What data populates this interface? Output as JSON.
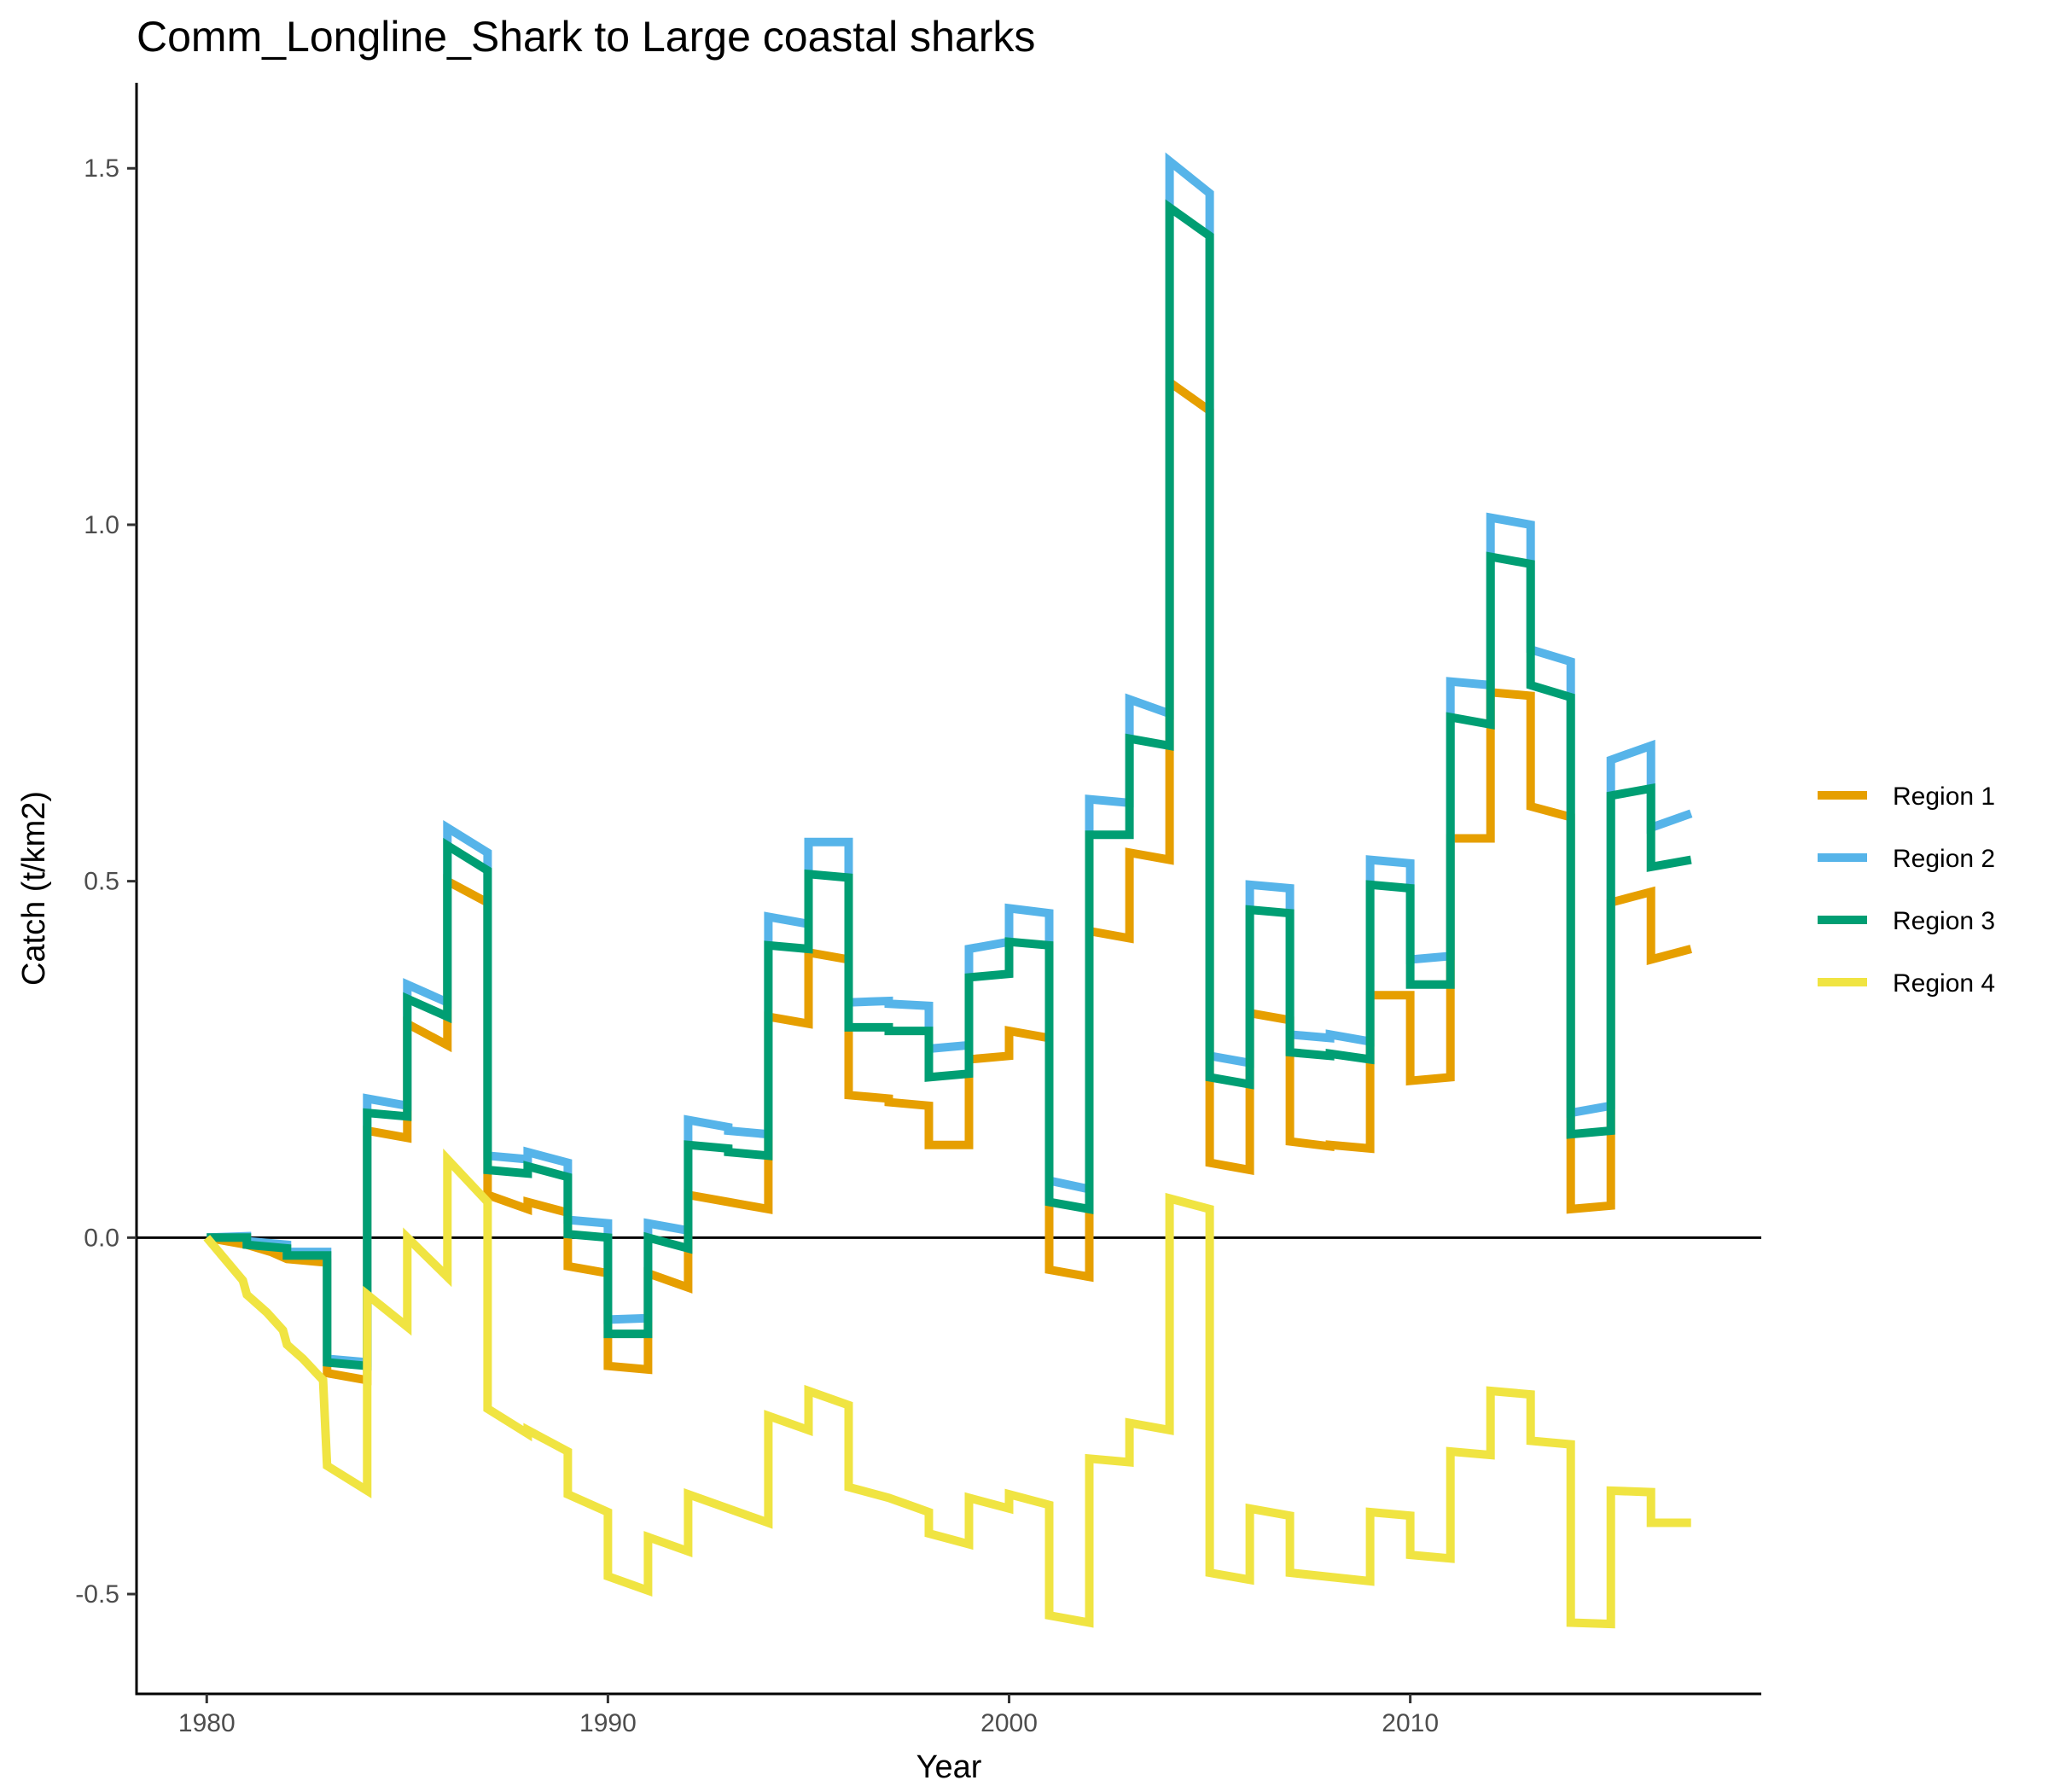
{
  "chart_data": {
    "type": "line",
    "title": "Comm_Longline_Shark to Large coastal sharks",
    "xlabel": "Year",
    "ylabel": "Catch (t/km2)",
    "xlim": [
      1978.25,
      2018.75
    ],
    "ylim": [
      -0.64,
      1.62
    ],
    "x_ticks": [
      1980,
      1990,
      2000,
      2010
    ],
    "y_ticks": [
      -0.5,
      0.0,
      0.5,
      1.0,
      1.5
    ],
    "x_tick_labels": [
      "1980",
      "1990",
      "2000",
      "2010"
    ],
    "y_tick_labels": [
      "-0.5",
      "0.0",
      "0.5",
      "1.0",
      "1.5"
    ],
    "reference_line_y": 0,
    "grid": false,
    "legend_position": "right",
    "series": [
      {
        "name": "Region 1",
        "color": "#E69F00",
        "points": [
          [
            1980,
            0
          ],
          [
            1981,
            -0.01
          ],
          [
            1981.6,
            -0.02
          ],
          [
            1982,
            -0.03
          ],
          [
            1983,
            -0.035
          ],
          [
            1983,
            -0.19
          ],
          [
            1984,
            -0.2
          ],
          [
            1984,
            0.15
          ],
          [
            1985,
            0.14
          ],
          [
            1985,
            0.3
          ],
          [
            1986,
            0.27
          ],
          [
            1986,
            0.5
          ],
          [
            1987,
            0.47
          ],
          [
            1987,
            0.06
          ],
          [
            1988,
            0.04
          ],
          [
            1988,
            0.05
          ],
          [
            1989,
            0.035
          ],
          [
            1989,
            -0.04
          ],
          [
            1990,
            -0.05
          ],
          [
            1990,
            -0.18
          ],
          [
            1991,
            -0.185
          ],
          [
            1991,
            -0.05
          ],
          [
            1992,
            -0.07
          ],
          [
            1992,
            0.06
          ],
          [
            1993,
            0.05
          ],
          [
            1993.5,
            0.045
          ],
          [
            1994,
            0.04
          ],
          [
            1994,
            0.31
          ],
          [
            1995,
            0.3
          ],
          [
            1995,
            0.4
          ],
          [
            1996,
            0.39
          ],
          [
            1996,
            0.2
          ],
          [
            1997,
            0.195
          ],
          [
            1997,
            0.19
          ],
          [
            1998,
            0.185
          ],
          [
            1998,
            0.13
          ],
          [
            1999,
            0.13
          ],
          [
            1999,
            0.25
          ],
          [
            2000,
            0.255
          ],
          [
            2000,
            0.29
          ],
          [
            2001,
            0.28
          ],
          [
            2001,
            -0.045
          ],
          [
            2002,
            -0.055
          ],
          [
            2002,
            0.43
          ],
          [
            2003,
            0.42
          ],
          [
            2003,
            0.54
          ],
          [
            2004,
            0.53
          ],
          [
            2004,
            1.2
          ],
          [
            2005,
            1.16
          ],
          [
            2005,
            0.105
          ],
          [
            2006,
            0.095
          ],
          [
            2006,
            0.315
          ],
          [
            2007,
            0.305
          ],
          [
            2007,
            0.135
          ],
          [
            2008,
            0.128
          ],
          [
            2008,
            0.13
          ],
          [
            2009,
            0.125
          ],
          [
            2009,
            0.34
          ],
          [
            2010,
            0.34
          ],
          [
            2010,
            0.22
          ],
          [
            2011,
            0.225
          ],
          [
            2011,
            0.56
          ],
          [
            2012,
            0.56
          ],
          [
            2012,
            0.765
          ],
          [
            2013,
            0.76
          ],
          [
            2013,
            0.605
          ],
          [
            2014,
            0.59
          ],
          [
            2014,
            0.04
          ],
          [
            2015,
            0.045
          ],
          [
            2015,
            0.47
          ],
          [
            2016,
            0.485
          ],
          [
            2016,
            0.39
          ],
          [
            2017,
            0.405
          ]
        ]
      },
      {
        "name": "Region 2",
        "color": "#56B4E9",
        "points": [
          [
            1980,
            0
          ],
          [
            1981,
            0.002
          ],
          [
            1981,
            -0.005
          ],
          [
            1982,
            -0.01
          ],
          [
            1982,
            -0.02
          ],
          [
            1983,
            -0.02
          ],
          [
            1983,
            -0.17
          ],
          [
            1984,
            -0.175
          ],
          [
            1984,
            0.195
          ],
          [
            1985,
            0.185
          ],
          [
            1985,
            0.355
          ],
          [
            1986,
            0.33
          ],
          [
            1986,
            0.575
          ],
          [
            1987,
            0.54
          ],
          [
            1987,
            0.115
          ],
          [
            1988,
            0.11
          ],
          [
            1988,
            0.12
          ],
          [
            1989,
            0.105
          ],
          [
            1989,
            0.025
          ],
          [
            1990,
            0.02
          ],
          [
            1990,
            -0.115
          ],
          [
            1991,
            -0.113
          ],
          [
            1991,
            0.02
          ],
          [
            1992,
            0.01
          ],
          [
            1992,
            0.165
          ],
          [
            1993,
            0.155
          ],
          [
            1993,
            0.15
          ],
          [
            1994,
            0.145
          ],
          [
            1994,
            0.45
          ],
          [
            1995,
            0.44
          ],
          [
            1995,
            0.555
          ],
          [
            1996,
            0.555
          ],
          [
            1996,
            0.33
          ],
          [
            1997,
            0.332
          ],
          [
            1997,
            0.328
          ],
          [
            1998,
            0.325
          ],
          [
            1998,
            0.265
          ],
          [
            1999,
            0.27
          ],
          [
            1999,
            0.405
          ],
          [
            2000,
            0.415
          ],
          [
            2000,
            0.462
          ],
          [
            2001,
            0.455
          ],
          [
            2001,
            0.08
          ],
          [
            2002,
            0.068
          ],
          [
            2002,
            0.615
          ],
          [
            2003,
            0.61
          ],
          [
            2003,
            0.755
          ],
          [
            2004,
            0.735
          ],
          [
            2004,
            1.51
          ],
          [
            2005,
            1.465
          ],
          [
            2005,
            0.255
          ],
          [
            2006,
            0.245
          ],
          [
            2006,
            0.495
          ],
          [
            2007,
            0.49
          ],
          [
            2007,
            0.285
          ],
          [
            2008,
            0.28
          ],
          [
            2008,
            0.285
          ],
          [
            2009,
            0.275
          ],
          [
            2009,
            0.53
          ],
          [
            2010,
            0.525
          ],
          [
            2010,
            0.39
          ],
          [
            2011,
            0.395
          ],
          [
            2011,
            0.78
          ],
          [
            2012,
            0.775
          ],
          [
            2012,
            1.01
          ],
          [
            2013,
            1.0
          ],
          [
            2013,
            0.825
          ],
          [
            2014,
            0.808
          ],
          [
            2014,
            0.175
          ],
          [
            2015,
            0.185
          ],
          [
            2015,
            0.67
          ],
          [
            2016,
            0.69
          ],
          [
            2016,
            0.575
          ],
          [
            2017,
            0.595
          ]
        ]
      },
      {
        "name": "Region 3",
        "color": "#009E73",
        "points": [
          [
            1980,
            0
          ],
          [
            1981,
            0
          ],
          [
            1981,
            -0.01
          ],
          [
            1982,
            -0.015
          ],
          [
            1982,
            -0.025
          ],
          [
            1983,
            -0.025
          ],
          [
            1983,
            -0.175
          ],
          [
            1984,
            -0.18
          ],
          [
            1984,
            0.175
          ],
          [
            1985,
            0.17
          ],
          [
            1985,
            0.335
          ],
          [
            1986,
            0.31
          ],
          [
            1986,
            0.55
          ],
          [
            1987,
            0.515
          ],
          [
            1987,
            0.095
          ],
          [
            1988,
            0.09
          ],
          [
            1988,
            0.1
          ],
          [
            1989,
            0.085
          ],
          [
            1989,
            0.005
          ],
          [
            1990,
            0
          ],
          [
            1990,
            -0.135
          ],
          [
            1991,
            -0.135
          ],
          [
            1991,
            0
          ],
          [
            1992,
            -0.015
          ],
          [
            1992,
            0.13
          ],
          [
            1993,
            0.125
          ],
          [
            1993,
            0.12
          ],
          [
            1994,
            0.115
          ],
          [
            1994,
            0.41
          ],
          [
            1995,
            0.405
          ],
          [
            1995,
            0.51
          ],
          [
            1996,
            0.505
          ],
          [
            1996,
            0.295
          ],
          [
            1997,
            0.295
          ],
          [
            1997,
            0.29
          ],
          [
            1998,
            0.29
          ],
          [
            1998,
            0.225
          ],
          [
            1999,
            0.23
          ],
          [
            1999,
            0.365
          ],
          [
            2000,
            0.37
          ],
          [
            2000,
            0.415
          ],
          [
            2001,
            0.41
          ],
          [
            2001,
            0.05
          ],
          [
            2002,
            0.04
          ],
          [
            2002,
            0.565
          ],
          [
            2003,
            0.565
          ],
          [
            2003,
            0.7
          ],
          [
            2004,
            0.69
          ],
          [
            2004,
            1.445
          ],
          [
            2005,
            1.405
          ],
          [
            2005,
            0.225
          ],
          [
            2006,
            0.215
          ],
          [
            2006,
            0.46
          ],
          [
            2007,
            0.455
          ],
          [
            2007,
            0.26
          ],
          [
            2008,
            0.255
          ],
          [
            2008,
            0.258
          ],
          [
            2009,
            0.25
          ],
          [
            2009,
            0.495
          ],
          [
            2010,
            0.49
          ],
          [
            2010,
            0.355
          ],
          [
            2011,
            0.355
          ],
          [
            2011,
            0.73
          ],
          [
            2012,
            0.72
          ],
          [
            2012,
            0.955
          ],
          [
            2013,
            0.945
          ],
          [
            2013,
            0.775
          ],
          [
            2014,
            0.758
          ],
          [
            2014,
            0.145
          ],
          [
            2015,
            0.15
          ],
          [
            2015,
            0.62
          ],
          [
            2016,
            0.63
          ],
          [
            2016,
            0.52
          ],
          [
            2017,
            0.53
          ]
        ]
      },
      {
        "name": "Region 4",
        "color": "#F0E442",
        "points": [
          [
            1980,
            0
          ],
          [
            1980.9,
            -0.06
          ],
          [
            1981,
            -0.08
          ],
          [
            1981.5,
            -0.105
          ],
          [
            1981.9,
            -0.13
          ],
          [
            1982,
            -0.15
          ],
          [
            1982.4,
            -0.17
          ],
          [
            1982.9,
            -0.2
          ],
          [
            1983,
            -0.32
          ],
          [
            1984,
            -0.355
          ],
          [
            1984,
            -0.08
          ],
          [
            1985,
            -0.125
          ],
          [
            1985,
            0
          ],
          [
            1986,
            -0.055
          ],
          [
            1986,
            0.11
          ],
          [
            1987,
            0.05
          ],
          [
            1987,
            -0.24
          ],
          [
            1988,
            -0.275
          ],
          [
            1988,
            -0.27
          ],
          [
            1989,
            -0.3
          ],
          [
            1989,
            -0.36
          ],
          [
            1990,
            -0.385
          ],
          [
            1990,
            -0.475
          ],
          [
            1991,
            -0.495
          ],
          [
            1991,
            -0.42
          ],
          [
            1992,
            -0.44
          ],
          [
            1992,
            -0.36
          ],
          [
            1993,
            -0.38
          ],
          [
            1993.5,
            -0.39
          ],
          [
            1994,
            -0.4
          ],
          [
            1994,
            -0.25
          ],
          [
            1995,
            -0.27
          ],
          [
            1995,
            -0.215
          ],
          [
            1996,
            -0.235
          ],
          [
            1996,
            -0.35
          ],
          [
            1997,
            -0.365
          ],
          [
            1997.5,
            -0.375
          ],
          [
            1998,
            -0.385
          ],
          [
            1998,
            -0.415
          ],
          [
            1999,
            -0.43
          ],
          [
            1999,
            -0.365
          ],
          [
            2000,
            -0.38
          ],
          [
            2000,
            -0.36
          ],
          [
            2001,
            -0.375
          ],
          [
            2001,
            -0.53
          ],
          [
            2002,
            -0.54
          ],
          [
            2002,
            -0.31
          ],
          [
            2003,
            -0.315
          ],
          [
            2003,
            -0.26
          ],
          [
            2004,
            -0.27
          ],
          [
            2004,
            0.055
          ],
          [
            2005,
            0.04
          ],
          [
            2005,
            -0.47
          ],
          [
            2006,
            -0.48
          ],
          [
            2006,
            -0.38
          ],
          [
            2007,
            -0.39
          ],
          [
            2007,
            -0.47
          ],
          [
            2008,
            -0.476
          ],
          [
            2009,
            -0.482
          ],
          [
            2009,
            -0.385
          ],
          [
            2010,
            -0.39
          ],
          [
            2010,
            -0.445
          ],
          [
            2011,
            -0.45
          ],
          [
            2011,
            -0.3
          ],
          [
            2012,
            -0.305
          ],
          [
            2012,
            -0.215
          ],
          [
            2013,
            -0.22
          ],
          [
            2013,
            -0.285
          ],
          [
            2014,
            -0.29
          ],
          [
            2014,
            -0.54
          ],
          [
            2015,
            -0.542
          ],
          [
            2015,
            -0.355
          ],
          [
            2016,
            -0.357
          ],
          [
            2016,
            -0.4
          ],
          [
            2017,
            -0.4
          ]
        ]
      }
    ]
  }
}
